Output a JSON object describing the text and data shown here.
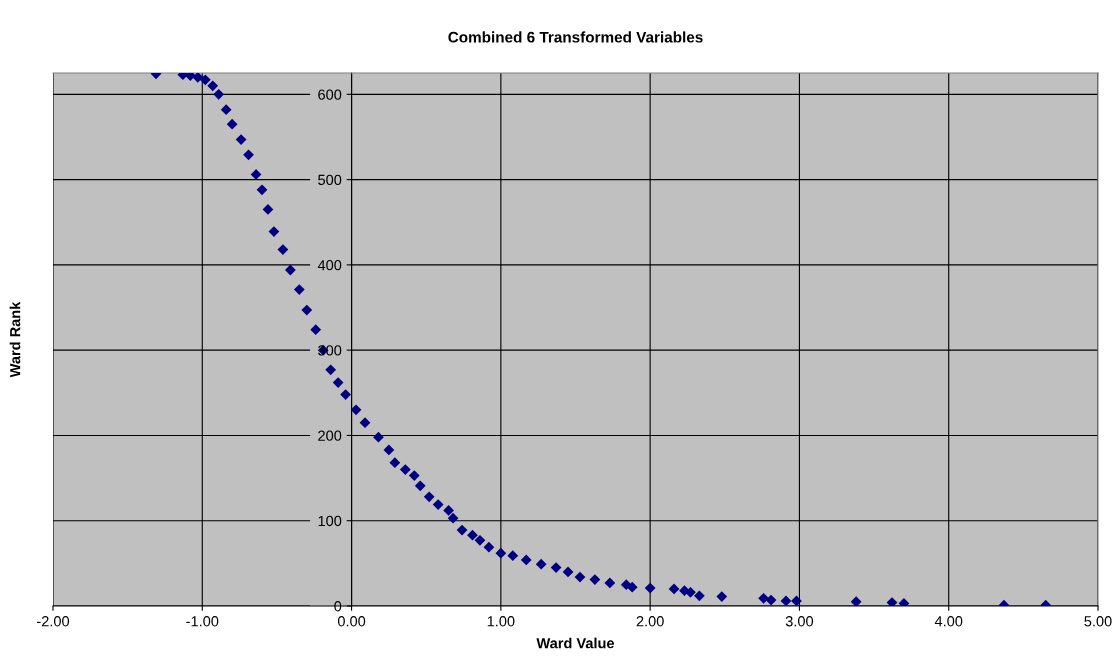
{
  "chart_data": {
    "type": "scatter",
    "title": "Combined 6 Transformed Variables",
    "xlabel": "Ward Value",
    "ylabel": "Ward Rank",
    "x": [
      -1.31,
      -1.13,
      -1.08,
      -1.03,
      -0.98,
      -0.93,
      -0.89,
      -0.84,
      -0.8,
      -0.74,
      -0.69,
      -0.64,
      -0.6,
      -0.56,
      -0.52,
      -0.46,
      -0.41,
      -0.35,
      -0.3,
      -0.24,
      -0.19,
      -0.14,
      -0.09,
      -0.04,
      0.03,
      0.09,
      0.18,
      0.25,
      0.29,
      0.36,
      0.42,
      0.46,
      0.52,
      0.58,
      0.65,
      0.68,
      0.74,
      0.81,
      0.86,
      0.92,
      1.0,
      1.08,
      1.17,
      1.27,
      1.37,
      1.45,
      1.53,
      1.63,
      1.73,
      1.84,
      1.88,
      2.0,
      2.16,
      2.23,
      2.27,
      2.33,
      2.48,
      2.76,
      2.81,
      2.91,
      2.98,
      3.38,
      3.62,
      3.7,
      4.37,
      4.65
    ],
    "series": [
      {
        "color": "#000080",
        "values": [
          624,
          623,
          622,
          620,
          617,
          610,
          600,
          582,
          565,
          547,
          529,
          506,
          488,
          465,
          439,
          418,
          394,
          371,
          347,
          324,
          300,
          277,
          262,
          248,
          230,
          215,
          198,
          183,
          168,
          160,
          153,
          141,
          128,
          119,
          112,
          103,
          89,
          83,
          77,
          69,
          62,
          59,
          54,
          49,
          45,
          40,
          34,
          31,
          27,
          25,
          22,
          21,
          20,
          18,
          16,
          12,
          11,
          9,
          7,
          6,
          6,
          5,
          4,
          3,
          1,
          1
        ]
      }
    ],
    "xlim": [
      -2,
      5
    ],
    "xticks": [
      {
        "value": -2,
        "label": "-2.00"
      },
      {
        "value": -1,
        "label": "-1.00"
      },
      {
        "value": 0,
        "label": "0.00"
      },
      {
        "value": 1,
        "label": "1.00"
      },
      {
        "value": 2,
        "label": "2.00"
      },
      {
        "value": 3,
        "label": "3.00"
      },
      {
        "value": 4,
        "label": "4.00"
      },
      {
        "value": 5,
        "label": "5.00"
      }
    ],
    "ylim": [
      0,
      625
    ],
    "yticks": [
      0,
      100,
      200,
      300,
      400,
      500,
      600
    ],
    "grid": true,
    "marker": "diamond",
    "legend": false
  }
}
